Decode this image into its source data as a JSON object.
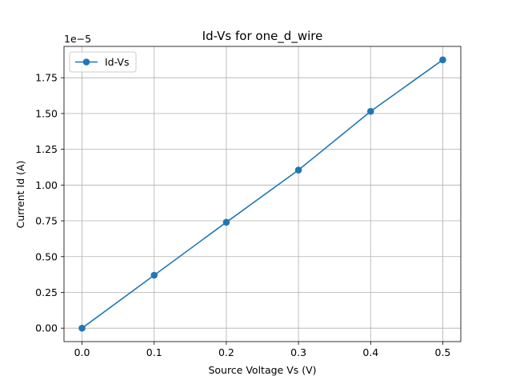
{
  "chart_data": {
    "type": "line",
    "title": "Id-Vs for one_d_wire",
    "xlabel": "Source Voltage Vs (V)",
    "ylabel": "Current Id (A)",
    "y_offset_text": "1e−5",
    "xlim": [
      -0.025,
      0.525
    ],
    "ylim": [
      -0.094,
      1.969
    ],
    "x_ticks": [
      0.0,
      0.1,
      0.2,
      0.3,
      0.4,
      0.5
    ],
    "x_tick_labels": [
      "0.0",
      "0.1",
      "0.2",
      "0.3",
      "0.4",
      "0.5"
    ],
    "y_ticks": [
      0.0,
      0.25,
      0.5,
      0.75,
      1.0,
      1.25,
      1.5,
      1.75
    ],
    "y_tick_labels": [
      "0.00",
      "0.25",
      "0.50",
      "0.75",
      "1.00",
      "1.25",
      "1.50",
      "1.75"
    ],
    "grid": true,
    "legend_position": "upper-left",
    "series": [
      {
        "name": "Id-Vs",
        "color": "#1f77b4",
        "marker": "circle",
        "x": [
          0.0,
          0.1,
          0.2,
          0.3,
          0.4,
          0.5
        ],
        "y": [
          0.0,
          0.37,
          0.74,
          1.105,
          1.515,
          1.875
        ]
      }
    ]
  }
}
